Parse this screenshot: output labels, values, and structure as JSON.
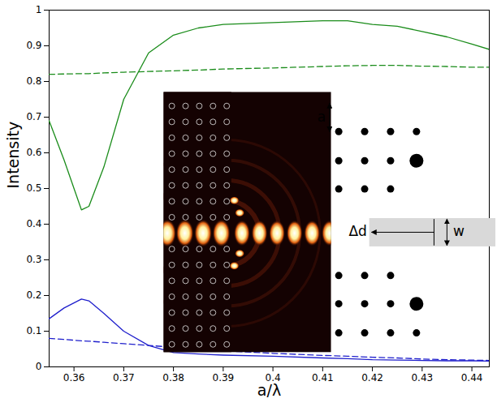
{
  "chart_data": {
    "type": "line",
    "x_label": "a/λ",
    "y_label": "Intensity",
    "x": [
      0.355,
      0.358,
      0.3615,
      0.363,
      0.366,
      0.37,
      0.375,
      0.38,
      0.385,
      0.39,
      0.4,
      0.41,
      0.415,
      0.42,
      0.425,
      0.43,
      0.435,
      0.44,
      0.4435
    ],
    "series": [
      {
        "color": "#1a8c1a",
        "line_style": "solid",
        "values": [
          0.69,
          0.58,
          0.44,
          0.45,
          0.56,
          0.75,
          0.88,
          0.93,
          0.95,
          0.96,
          0.965,
          0.97,
          0.97,
          0.96,
          0.955,
          0.94,
          0.925,
          0.905,
          0.89
        ]
      },
      {
        "color": "#1a8c1a",
        "line_style": "dashed",
        "values": [
          0.82,
          0.821,
          0.822,
          0.822,
          0.824,
          0.826,
          0.828,
          0.83,
          0.832,
          0.835,
          0.838,
          0.842,
          0.844,
          0.845,
          0.845,
          0.843,
          0.842,
          0.84,
          0.84
        ]
      },
      {
        "color": "#1f1fcc",
        "line_style": "solid",
        "values": [
          0.135,
          0.165,
          0.19,
          0.185,
          0.15,
          0.1,
          0.06,
          0.04,
          0.036,
          0.033,
          0.03,
          0.025,
          0.023,
          0.02,
          0.019,
          0.018,
          0.017,
          0.017,
          0.016
        ]
      },
      {
        "color": "#1f1fcc",
        "line_style": "dashed",
        "values": [
          0.08,
          0.077,
          0.073,
          0.072,
          0.069,
          0.065,
          0.06,
          0.055,
          0.05,
          0.045,
          0.038,
          0.032,
          0.03,
          0.027,
          0.025,
          0.022,
          0.02,
          0.019,
          0.018
        ]
      }
    ],
    "xlim": [
      0.355,
      0.4435
    ],
    "ylim": [
      0,
      1
    ],
    "xticks": [
      0.36,
      0.37,
      0.38,
      0.39,
      0.4,
      0.41,
      0.42,
      0.43,
      0.44
    ],
    "yticks": [
      0,
      0.1,
      0.2,
      0.3,
      0.4,
      0.5,
      0.6,
      0.7,
      0.8,
      0.9,
      1
    ],
    "annotations": [
      "a",
      "Δd",
      "w"
    ]
  }
}
